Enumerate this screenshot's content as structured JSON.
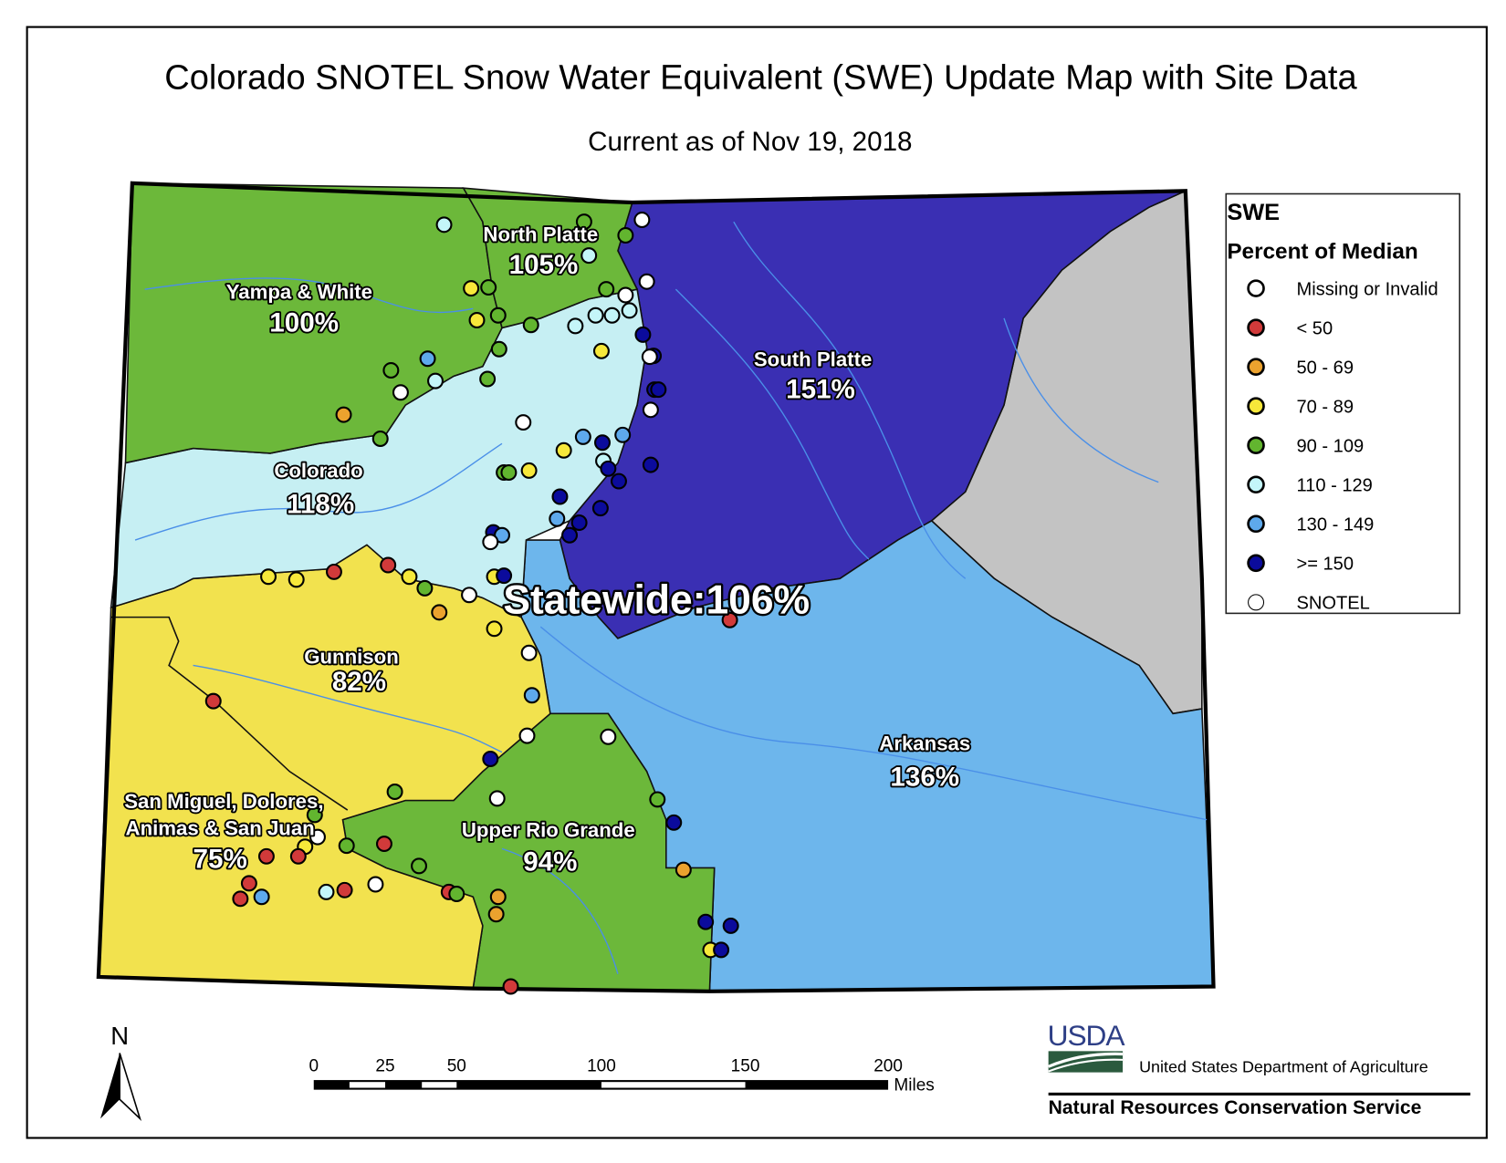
{
  "title": "Colorado SNOTEL Snow Water Equivalent (SWE) Update Map with Site Data",
  "subtitle": "Current as of Nov 19, 2018",
  "statewide": "Statewide:106%",
  "basins": [
    {
      "name": "North Platte",
      "pct": "105%",
      "color": "#6cb83a"
    },
    {
      "name": "Yampa & White",
      "pct": "100%",
      "color": "#6cb83a"
    },
    {
      "name": "South Platte",
      "pct": "151%",
      "color": "#3a2fb3"
    },
    {
      "name": "Colorado",
      "pct": "118%",
      "color": "#c6eff3"
    },
    {
      "name": "Gunnison",
      "pct": "82%",
      "color": "#f2e24e"
    },
    {
      "name": "Arkansas",
      "pct": "136%",
      "color": "#6db6ec"
    },
    {
      "name": "San Miguel, Dolores,",
      "name2": "Animas & San Juan",
      "pct": "75%",
      "color": "#f2e24e"
    },
    {
      "name": "Upper Rio Grande",
      "pct": "94%",
      "color": "#6cb83a"
    },
    {
      "color": "#c3c3c3"
    }
  ],
  "legend": {
    "title": "SWE",
    "subtitle": "Percent of Median",
    "items": [
      {
        "key": "W",
        "label": "Missing or Invalid",
        "color": "#ffffff"
      },
      {
        "key": "R",
        "label": "< 50",
        "color": "#d13a3a"
      },
      {
        "key": "O",
        "label": "50 - 69",
        "color": "#eba22e"
      },
      {
        "key": "Y",
        "label": "70 - 89",
        "color": "#f7e83a"
      },
      {
        "key": "G",
        "label": "90 - 109",
        "color": "#62b52f"
      },
      {
        "key": "C",
        "label": "110 - 129",
        "color": "#c4f6f9"
      },
      {
        "key": "B",
        "label": "130 - 149",
        "color": "#5ea9ec"
      },
      {
        "key": "N",
        "label": ">= 150",
        "color": "#0b0b9c"
      },
      {
        "key": "S",
        "label": "SNOTEL",
        "color": "#ffffff"
      }
    ]
  },
  "north_arrow": "N",
  "scale_bar": {
    "ticks": [
      "0",
      "25",
      "50",
      "100",
      "150",
      "200"
    ],
    "unit": "Miles"
  },
  "footer": {
    "logo_text": "USDA",
    "department": "United States Department of Agriculture",
    "agency": "Natural Resources Conservation Service"
  }
}
